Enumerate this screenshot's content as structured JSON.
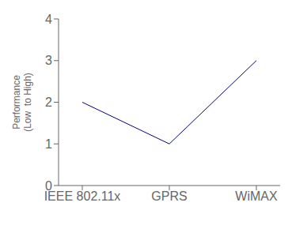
{
  "chart_data": {
    "type": "line",
    "categories": [
      "IEEE 802.11x",
      "GPRS",
      "WiMAX"
    ],
    "values": [
      2,
      1,
      3
    ],
    "color": "#00008B",
    "ylabel": "Performance\n(Low  to High)",
    "ylim": [
      0,
      4
    ],
    "yticks": [
      0,
      1,
      2,
      3,
      4
    ],
    "grid": false
  }
}
